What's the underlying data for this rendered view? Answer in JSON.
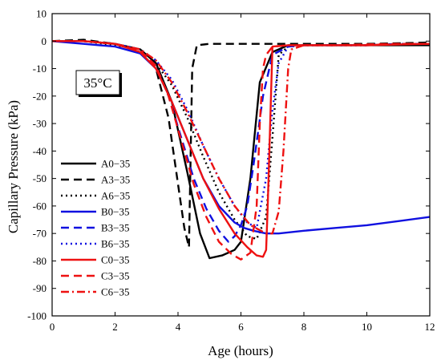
{
  "chart_data": {
    "type": "line",
    "title": "",
    "xlabel": "Age (hours)",
    "ylabel": "Capillary Pressure (kPa)",
    "xlim": [
      0,
      12
    ],
    "ylim": [
      -100,
      10
    ],
    "xticks": [
      0,
      2,
      4,
      6,
      8,
      10,
      12
    ],
    "yticks": [
      10,
      0,
      -10,
      -20,
      -30,
      -40,
      -50,
      -60,
      -70,
      -80,
      -90,
      -100
    ],
    "grid": false,
    "legend_position": "lower-left",
    "annotation": "35°C",
    "series": [
      {
        "name": "A0−35",
        "color": "#000000",
        "dash": "solid",
        "x": [
          0,
          1,
          2,
          2.8,
          3.3,
          3.8,
          4.3,
          4.7,
          5.0,
          5.4,
          5.8,
          6.0,
          6.3,
          6.6,
          7.0,
          7.5,
          8,
          9,
          10,
          11,
          12
        ],
        "y": [
          0,
          0,
          -1,
          -3,
          -8,
          -22,
          -48,
          -70,
          -79,
          -78,
          -76,
          -73,
          -50,
          -15,
          -4,
          -1.5,
          -1.5,
          -1.5,
          -1.5,
          -1.5,
          -1.5
        ]
      },
      {
        "name": "A3−35",
        "color": "#000000",
        "dash": "10,6",
        "x": [
          0,
          1,
          2,
          2.8,
          3.3,
          3.7,
          4.0,
          4.2,
          4.35,
          4.45,
          4.6,
          5,
          6,
          7,
          8,
          9,
          10,
          11,
          12
        ],
        "y": [
          0,
          0.5,
          -1,
          -4,
          -10,
          -28,
          -52,
          -68,
          -75,
          -10,
          -1.5,
          -1,
          -1,
          -1,
          -1,
          -1,
          -1,
          -0.8,
          -0.5
        ]
      },
      {
        "name": "A6−35",
        "color": "#000000",
        "dash": "2,4",
        "x": [
          0,
          1,
          2,
          2.8,
          3.3,
          3.8,
          4.3,
          4.8,
          5.3,
          5.8,
          6.2,
          6.5,
          6.8,
          7.0,
          7.2,
          7.5,
          8,
          9,
          10,
          11,
          12
        ],
        "y": [
          0,
          0,
          -1.5,
          -3,
          -8,
          -16,
          -28,
          -42,
          -55,
          -65,
          -71,
          -72,
          -64,
          -35,
          -5,
          -2,
          -1.5,
          -1.5,
          -1.5,
          -1,
          -1
        ]
      },
      {
        "name": "B0−35",
        "color": "#1010e0",
        "dash": "solid",
        "x": [
          0,
          1,
          2,
          2.8,
          3.3,
          3.8,
          4.3,
          4.8,
          5.3,
          5.8,
          6.1,
          6.4,
          6.8,
          7.2,
          8,
          9,
          10,
          11,
          12
        ],
        "y": [
          0,
          -1,
          -2,
          -4.5,
          -10,
          -22,
          -36,
          -50,
          -60,
          -66,
          -68,
          -69,
          -70,
          -70,
          -69,
          -68,
          -67,
          -65.5,
          -64
        ]
      },
      {
        "name": "B3−35",
        "color": "#1010e0",
        "dash": "10,6",
        "x": [
          0,
          1,
          2,
          2.8,
          3.3,
          3.7,
          4.1,
          4.5,
          4.9,
          5.3,
          5.6,
          5.8,
          6.0,
          6.2,
          6.4,
          6.7,
          7.0,
          7.5,
          8,
          9,
          10,
          11,
          12
        ],
        "y": [
          0,
          0,
          -1,
          -3.5,
          -9,
          -20,
          -35,
          -50,
          -61,
          -69,
          -73,
          -71,
          -67,
          -60,
          -45,
          -20,
          -5,
          -2,
          -1.5,
          -1.5,
          -1.5,
          -1,
          -1
        ]
      },
      {
        "name": "B6−35",
        "color": "#1010e0",
        "dash": "2,4",
        "x": [
          0,
          1,
          2,
          2.8,
          3.3,
          3.8,
          4.3,
          4.8,
          5.3,
          5.8,
          6.2,
          6.5,
          6.8,
          7.0,
          7.2,
          7.5,
          8,
          9,
          10,
          11,
          12
        ],
        "y": [
          0,
          0,
          -1,
          -3,
          -7,
          -14,
          -25,
          -38,
          -50,
          -60,
          -66,
          -68,
          -50,
          -25,
          -8,
          -2,
          -1.5,
          -1.5,
          -1.5,
          -1,
          -1
        ]
      },
      {
        "name": "C0−35",
        "color": "#ee1111",
        "dash": "solid",
        "x": [
          0,
          1,
          2,
          2.8,
          3.3,
          3.8,
          4.3,
          4.8,
          5.3,
          5.8,
          6.2,
          6.5,
          6.7,
          6.8,
          6.85,
          7.0,
          7.5,
          8,
          9,
          10,
          11,
          12
        ],
        "y": [
          0,
          0,
          -1,
          -4,
          -10,
          -22,
          -36,
          -50,
          -61,
          -70,
          -75,
          -78,
          -78.5,
          -76,
          -60,
          -2,
          -1.5,
          -1.5,
          -1.5,
          -1.5,
          -1.2,
          -1
        ]
      },
      {
        "name": "C3−35",
        "color": "#ee1111",
        "dash": "10,6",
        "x": [
          0,
          1,
          2,
          2.8,
          3.3,
          3.7,
          4.1,
          4.5,
          4.9,
          5.3,
          5.7,
          6.0,
          6.3,
          6.5,
          6.6,
          6.7,
          6.8,
          7.0,
          7.5,
          8,
          9,
          10,
          11,
          12
        ],
        "y": [
          0,
          0,
          -1,
          -3.5,
          -9,
          -20,
          -36,
          -52,
          -64,
          -73,
          -77.5,
          -79.5,
          -77,
          -60,
          -30,
          -10,
          -5,
          -2,
          -1.5,
          -1.5,
          -1.5,
          -1.2,
          -1,
          -1
        ]
      },
      {
        "name": "C6−35",
        "color": "#ee1111",
        "dash": "10,4,2,4",
        "x": [
          0,
          1,
          2,
          2.8,
          3.3,
          3.8,
          4.3,
          4.8,
          5.3,
          5.8,
          6.3,
          6.8,
          7.0,
          7.2,
          7.35,
          7.5,
          7.6,
          8,
          9,
          10,
          11,
          12
        ],
        "y": [
          0,
          0,
          -1,
          -3,
          -7,
          -15,
          -26,
          -38,
          -50,
          -60,
          -67,
          -70,
          -70,
          -62,
          -40,
          -10,
          -3,
          -1.5,
          -1.5,
          -1.5,
          -1,
          -1
        ]
      }
    ]
  }
}
